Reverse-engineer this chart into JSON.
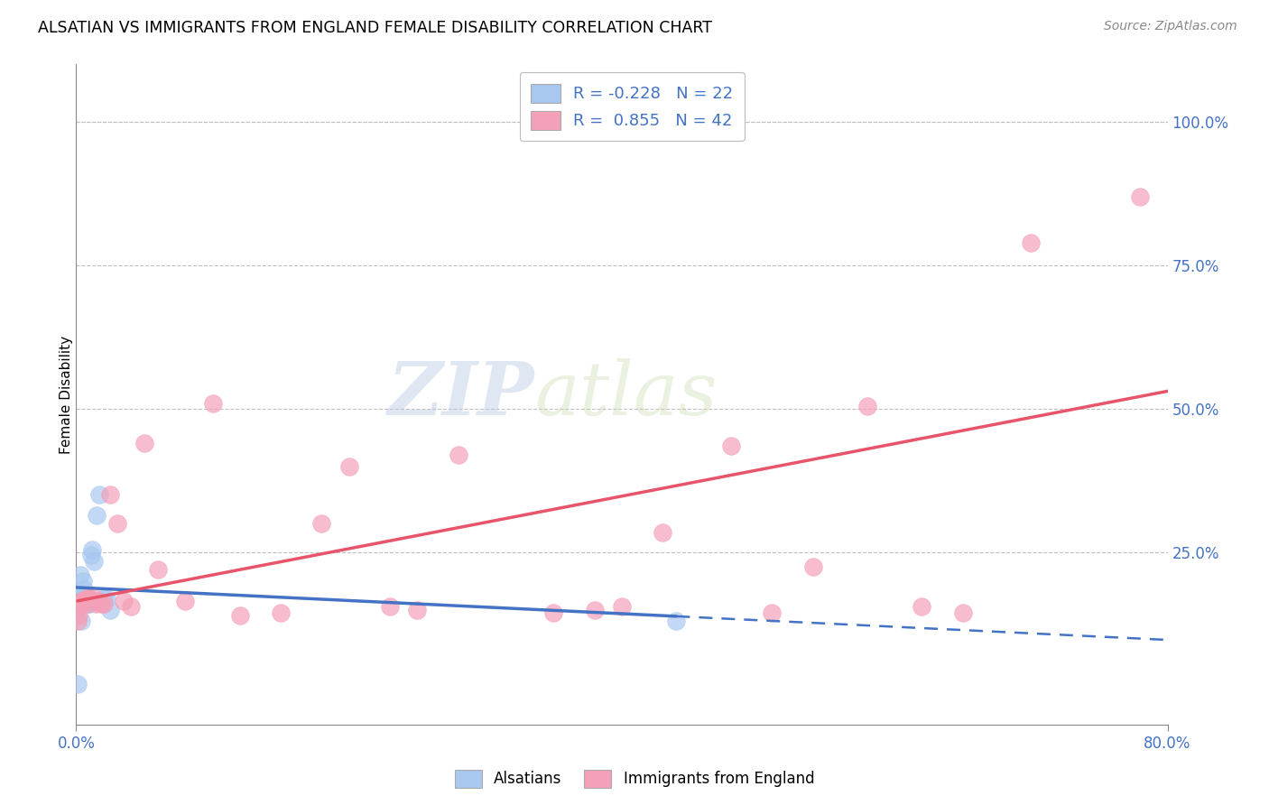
{
  "title": "ALSATIAN VS IMMIGRANTS FROM ENGLAND FEMALE DISABILITY CORRELATION CHART",
  "source": "Source: ZipAtlas.com",
  "ylabel": "Female Disability",
  "xlim": [
    0.0,
    0.8
  ],
  "ylim": [
    -0.05,
    1.1
  ],
  "ytick_labels": [
    "100.0%",
    "75.0%",
    "50.0%",
    "25.0%"
  ],
  "ytick_vals": [
    1.0,
    0.75,
    0.5,
    0.25
  ],
  "blue_color": "#A8C8F0",
  "pink_color": "#F4A0B8",
  "blue_line_color": "#4472C4",
  "pink_line_color": "#E8556A",
  "blue_R": -0.228,
  "blue_N": 22,
  "pink_R": 0.855,
  "pink_N": 42,
  "watermark_zip": "ZIP",
  "watermark_atlas": "atlas",
  "legend_label_blue": "Alsatians",
  "legend_label_pink": "Immigrants from England",
  "alsatian_x": [
    0.001,
    0.002,
    0.003,
    0.003,
    0.004,
    0.005,
    0.005,
    0.006,
    0.007,
    0.008,
    0.009,
    0.01,
    0.011,
    0.012,
    0.013,
    0.015,
    0.017,
    0.02,
    0.022,
    0.025,
    0.44,
    0.004
  ],
  "alsatian_y": [
    0.02,
    0.155,
    0.16,
    0.21,
    0.175,
    0.165,
    0.2,
    0.185,
    0.175,
    0.165,
    0.16,
    0.16,
    0.245,
    0.255,
    0.235,
    0.315,
    0.35,
    0.17,
    0.17,
    0.15,
    0.13,
    0.13
  ],
  "england_x": [
    0.001,
    0.002,
    0.003,
    0.004,
    0.005,
    0.006,
    0.007,
    0.008,
    0.01,
    0.012,
    0.014,
    0.016,
    0.018,
    0.02,
    0.025,
    0.03,
    0.035,
    0.04,
    0.05,
    0.06,
    0.08,
    0.1,
    0.12,
    0.15,
    0.18,
    0.2,
    0.23,
    0.25,
    0.28,
    0.35,
    0.38,
    0.4,
    0.43,
    0.48,
    0.51,
    0.54,
    0.58,
    0.62,
    0.65,
    0.7,
    0.78,
    0.82
  ],
  "england_y": [
    0.13,
    0.14,
    0.155,
    0.165,
    0.165,
    0.165,
    0.16,
    0.17,
    0.17,
    0.175,
    0.16,
    0.165,
    0.16,
    0.16,
    0.35,
    0.3,
    0.165,
    0.155,
    0.44,
    0.22,
    0.165,
    0.51,
    0.14,
    0.145,
    0.3,
    0.4,
    0.155,
    0.15,
    0.42,
    0.145,
    0.15,
    0.155,
    0.285,
    0.435,
    0.145,
    0.225,
    0.505,
    0.155,
    0.145,
    0.79,
    0.87,
    0.87
  ]
}
